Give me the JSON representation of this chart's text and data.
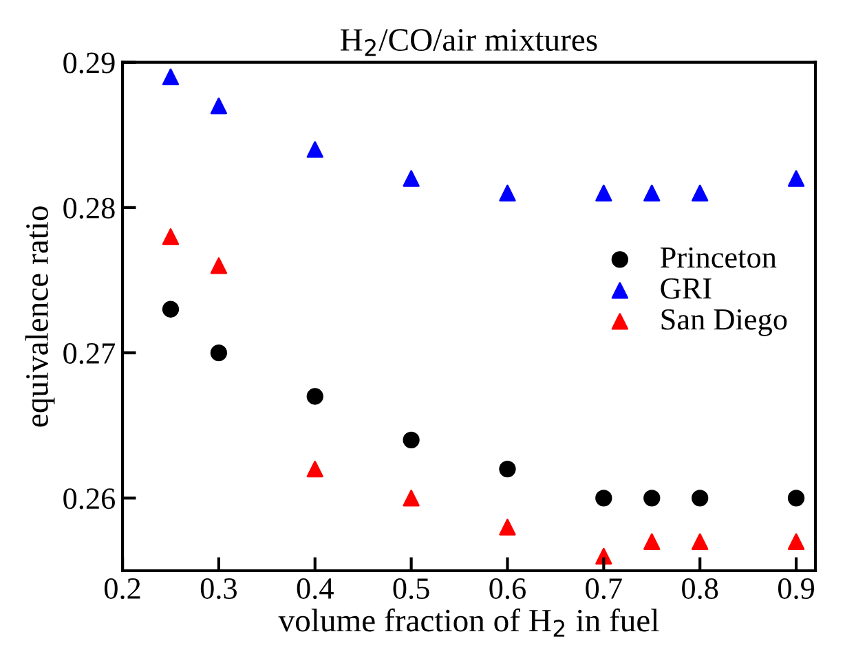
{
  "chart_data": {
    "type": "scatter",
    "title": "H$_{2}$/CO/air mixtures",
    "xlabel": "volume fraction of H$_{2}$ in fuel",
    "ylabel": "equivalence ratio",
    "x": [
      0.25,
      0.3,
      0.4,
      0.5,
      0.6,
      0.7,
      0.75,
      0.8,
      0.9
    ],
    "series": [
      {
        "name": "Princeton",
        "color": "#000000",
        "marker": "circle",
        "values": [
          0.273,
          0.27,
          0.267,
          0.264,
          0.262,
          0.26,
          0.26,
          0.26,
          0.26
        ]
      },
      {
        "name": "GRI",
        "color": "#0000ff",
        "marker": "triangle",
        "values": [
          0.289,
          0.287,
          0.284,
          0.282,
          0.281,
          0.281,
          0.281,
          0.281,
          0.282
        ]
      },
      {
        "name": "San Diego",
        "color": "#ff0000",
        "marker": "triangle",
        "values": [
          0.278,
          0.276,
          0.262,
          0.26,
          0.258,
          0.256,
          0.257,
          0.257,
          0.257
        ]
      }
    ],
    "xlim": [
      0.2,
      0.92
    ],
    "ylim": [
      0.255,
      0.29
    ],
    "xticks": [
      0.2,
      0.3,
      0.4,
      0.5,
      0.6,
      0.7,
      0.8,
      0.9
    ],
    "yticks": [
      0.26,
      0.27,
      0.28,
      0.29
    ],
    "grid": false,
    "legend": "right"
  }
}
